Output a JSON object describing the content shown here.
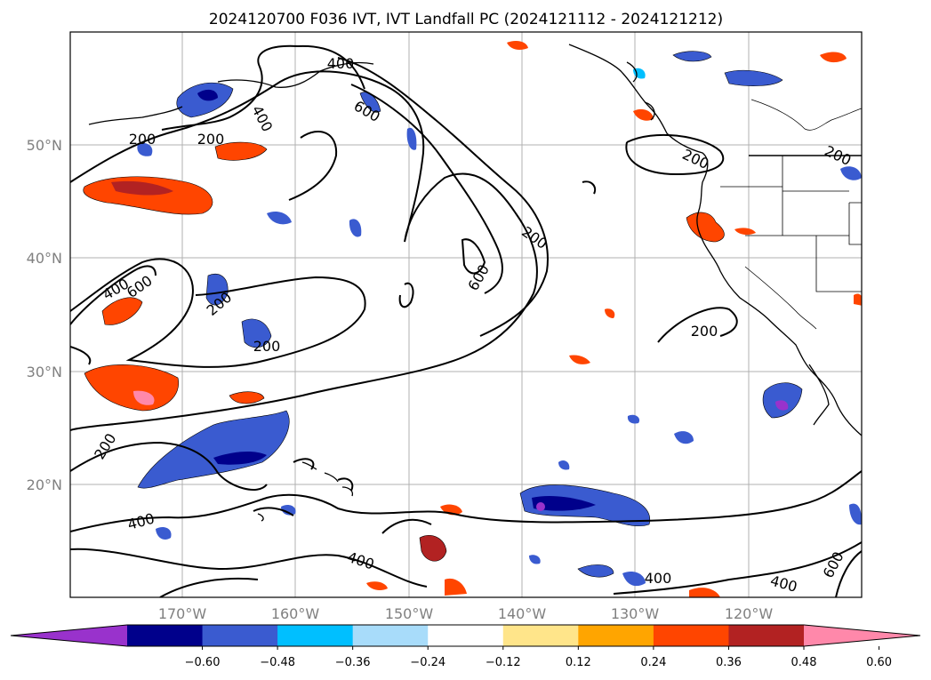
{
  "title": "2024120700 F036 IVT, IVT Landfall PC (2024121112 - 2024121212)",
  "map": {
    "lat_labels": [
      "50°N",
      "40°N",
      "30°N",
      "20°N"
    ],
    "lon_labels": [
      "170°W",
      "160°W",
      "150°W",
      "140°W",
      "130°W",
      "120°W"
    ],
    "contour_labels": [
      "400",
      "400",
      "600",
      "200",
      "200",
      "600",
      "400",
      "600",
      "200",
      "200",
      "200",
      "200",
      "200",
      "400",
      "400",
      "400",
      "400",
      "600",
      "200",
      "200"
    ],
    "colors": {
      "land_outline": "#000000",
      "grid": "#b0b0b0",
      "contour": "#000000"
    }
  },
  "colorbar": {
    "tick_labels": [
      "−0.60",
      "−0.48",
      "−0.36",
      "−0.24",
      "−0.12",
      "0.12",
      "0.24",
      "0.36",
      "0.48",
      "0.60"
    ],
    "colors": [
      "#9932cc",
      "#00008b",
      "#3a5bd0",
      "#00bfff",
      "#a8dcfa",
      "#ffffff",
      "#ffe58a",
      "#ffa500",
      "#ff4500",
      "#b22222",
      "#ff88aa"
    ]
  }
}
